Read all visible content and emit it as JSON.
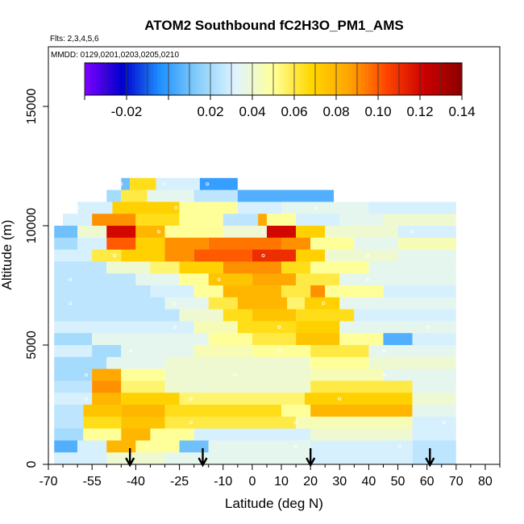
{
  "chart_data": {
    "type": "heatmap",
    "title": "ATOM2 Southbound fC2H3O_PM1_AMS",
    "subtitle_flights": "Flts: 2,3,4,5,6",
    "subtitle_dates": "MMDD: 0129,0201,0203,0205,0210",
    "xlabel": "Latitude (deg N)",
    "ylabel": "Altitude (m)",
    "xlim": [
      -70,
      85
    ],
    "ylim": [
      0,
      17500
    ],
    "x_ticks": [
      -70,
      -55,
      -40,
      -25,
      -10,
      0,
      10,
      20,
      30,
      40,
      50,
      60,
      70,
      80
    ],
    "x_minor_ticks": [
      -65,
      -60,
      -50,
      -45,
      -35,
      -30,
      -20,
      -15,
      -5,
      5,
      15,
      25,
      35,
      45,
      55,
      65,
      75,
      85
    ],
    "y_ticks": [
      0,
      5000,
      10000,
      15000
    ],
    "colorbar": {
      "ticks": [
        -0.02,
        0.02,
        0.04,
        0.06,
        0.08,
        0.1,
        0.12,
        0.14
      ],
      "tick_labels": [
        "-0.02",
        "0.02",
        "0.04",
        "0.06",
        "0.08",
        "0.10",
        "0.12",
        "0.14"
      ],
      "range": [
        -0.04,
        0.14
      ],
      "colors": [
        "#7f00ff",
        "#0000cd",
        "#1e90ff",
        "#87cefa",
        "#e0f4ff",
        "#ffff99",
        "#ffd700",
        "#ffa500",
        "#ff4500",
        "#cc0000",
        "#8b0000"
      ]
    },
    "arrow_latitudes": [
      -42,
      -17,
      20,
      61
    ],
    "rows": [
      {
        "alt": 11500,
        "segs": [
          [
            -45,
            -42,
            0.01
          ],
          [
            -42,
            -33,
            0.065
          ],
          [
            -33,
            -18,
            0.03
          ],
          [
            -18,
            -5,
            0.0
          ]
        ]
      },
      {
        "alt": 11000,
        "segs": [
          [
            -50,
            -45,
            0.02
          ],
          [
            -45,
            -36,
            0.06
          ],
          [
            -36,
            -20,
            0.035
          ],
          [
            -20,
            -5,
            0.025
          ],
          [
            -5,
            28,
            0.005
          ]
        ]
      },
      {
        "alt": 10500,
        "segs": [
          [
            -60,
            -48,
            0.03
          ],
          [
            -48,
            -25,
            0.07
          ],
          [
            -25,
            -5,
            0.05
          ],
          [
            -5,
            10,
            0.03
          ],
          [
            10,
            40,
            0.035
          ],
          [
            40,
            70,
            0.03
          ]
        ]
      },
      {
        "alt": 10000,
        "segs": [
          [
            -65,
            -55,
            0.03
          ],
          [
            -55,
            -40,
            0.09
          ],
          [
            -40,
            -25,
            0.065
          ],
          [
            -25,
            -10,
            0.05
          ],
          [
            -10,
            2,
            0.025
          ],
          [
            2,
            5,
            0.085
          ],
          [
            5,
            15,
            0.05
          ],
          [
            15,
            30,
            0.03
          ],
          [
            30,
            45,
            0.035
          ],
          [
            45,
            70,
            0.04
          ]
        ]
      },
      {
        "alt": 9500,
        "segs": [
          [
            -68,
            -60,
            0.01
          ],
          [
            -60,
            -50,
            0.04
          ],
          [
            -50,
            -40,
            0.12
          ],
          [
            -40,
            -30,
            0.08
          ],
          [
            -30,
            -10,
            0.05
          ],
          [
            -10,
            5,
            0.04
          ],
          [
            5,
            15,
            0.12
          ],
          [
            15,
            25,
            0.07
          ],
          [
            25,
            50,
            0.04
          ],
          [
            50,
            70,
            0.03
          ]
        ]
      },
      {
        "alt": 9000,
        "segs": [
          [
            -68,
            -60,
            0.02
          ],
          [
            -60,
            -50,
            0.03
          ],
          [
            -50,
            -40,
            0.1
          ],
          [
            -40,
            -30,
            0.07
          ],
          [
            -30,
            -15,
            0.09
          ],
          [
            -15,
            10,
            0.095
          ],
          [
            10,
            20,
            0.09
          ],
          [
            20,
            35,
            0.05
          ],
          [
            35,
            50,
            0.035
          ],
          [
            50,
            70,
            0.045
          ]
        ]
      },
      {
        "alt": 8500,
        "segs": [
          [
            -68,
            -55,
            0.03
          ],
          [
            -55,
            -45,
            0.06
          ],
          [
            -45,
            -30,
            0.07
          ],
          [
            -30,
            -20,
            0.09
          ],
          [
            -20,
            0,
            0.1
          ],
          [
            0,
            15,
            0.11
          ],
          [
            15,
            25,
            0.07
          ],
          [
            25,
            50,
            0.04
          ],
          [
            50,
            70,
            0.035
          ]
        ]
      },
      {
        "alt": 8000,
        "segs": [
          [
            -68,
            -50,
            0.025
          ],
          [
            -50,
            -35,
            0.04
          ],
          [
            -35,
            -25,
            0.055
          ],
          [
            -25,
            -10,
            0.07
          ],
          [
            -10,
            10,
            0.09
          ],
          [
            10,
            20,
            0.065
          ],
          [
            20,
            40,
            0.05
          ],
          [
            40,
            70,
            0.035
          ]
        ]
      },
      {
        "alt": 7500,
        "segs": [
          [
            -68,
            -40,
            0.025
          ],
          [
            -40,
            -25,
            0.035
          ],
          [
            -25,
            -15,
            0.05
          ],
          [
            -15,
            0,
            0.075
          ],
          [
            0,
            15,
            0.085
          ],
          [
            15,
            30,
            0.06
          ],
          [
            30,
            70,
            0.035
          ]
        ]
      },
      {
        "alt": 7000,
        "segs": [
          [
            -68,
            -35,
            0.025
          ],
          [
            -35,
            -20,
            0.03
          ],
          [
            -20,
            -10,
            0.05
          ],
          [
            -10,
            10,
            0.08
          ],
          [
            10,
            20,
            0.06
          ],
          [
            20,
            25,
            0.09
          ],
          [
            25,
            45,
            0.05
          ],
          [
            45,
            70,
            0.03
          ]
        ]
      },
      {
        "alt": 6500,
        "segs": [
          [
            -68,
            -30,
            0.025
          ],
          [
            -30,
            -15,
            0.035
          ],
          [
            -15,
            -5,
            0.06
          ],
          [
            -5,
            12,
            0.08
          ],
          [
            12,
            18,
            0.055
          ],
          [
            18,
            30,
            0.07
          ],
          [
            30,
            70,
            0.035
          ]
        ]
      },
      {
        "alt": 6000,
        "segs": [
          [
            -68,
            -25,
            0.025
          ],
          [
            -25,
            -10,
            0.04
          ],
          [
            -10,
            0,
            0.065
          ],
          [
            0,
            15,
            0.075
          ],
          [
            15,
            35,
            0.065
          ],
          [
            35,
            70,
            0.03
          ]
        ]
      },
      {
        "alt": 5500,
        "segs": [
          [
            -68,
            -20,
            0.03
          ],
          [
            -20,
            -5,
            0.045
          ],
          [
            -5,
            15,
            0.065
          ],
          [
            15,
            30,
            0.07
          ],
          [
            30,
            70,
            0.035
          ]
        ]
      },
      {
        "alt": 5000,
        "segs": [
          [
            -68,
            -55,
            0.02
          ],
          [
            -55,
            -15,
            0.035
          ],
          [
            -15,
            0,
            0.05
          ],
          [
            0,
            15,
            0.06
          ],
          [
            15,
            30,
            0.075
          ],
          [
            30,
            45,
            0.05
          ],
          [
            45,
            55,
            0.005
          ],
          [
            55,
            70,
            0.03
          ]
        ]
      },
      {
        "alt": 4500,
        "segs": [
          [
            -68,
            -55,
            0.03
          ],
          [
            -55,
            -45,
            0.02
          ],
          [
            -45,
            -20,
            0.035
          ],
          [
            -20,
            0,
            0.045
          ],
          [
            0,
            20,
            0.05
          ],
          [
            20,
            40,
            0.06
          ],
          [
            40,
            70,
            0.035
          ]
        ]
      },
      {
        "alt": 4000,
        "segs": [
          [
            -68,
            -50,
            0.02
          ],
          [
            -50,
            -30,
            0.035
          ],
          [
            -30,
            20,
            0.04
          ],
          [
            20,
            40,
            0.05
          ],
          [
            40,
            70,
            0.04
          ]
        ]
      },
      {
        "alt": 3500,
        "segs": [
          [
            -68,
            -55,
            0.02
          ],
          [
            -55,
            -45,
            0.085
          ],
          [
            -45,
            -30,
            0.05
          ],
          [
            -30,
            20,
            0.04
          ],
          [
            20,
            45,
            0.045
          ],
          [
            45,
            70,
            0.035
          ]
        ]
      },
      {
        "alt": 3000,
        "segs": [
          [
            -68,
            -55,
            0.025
          ],
          [
            -55,
            -45,
            0.09
          ],
          [
            -45,
            -30,
            0.055
          ],
          [
            -30,
            20,
            0.04
          ],
          [
            20,
            55,
            0.06
          ],
          [
            55,
            70,
            0.035
          ]
        ]
      },
      {
        "alt": 2500,
        "segs": [
          [
            -68,
            -55,
            0.03
          ],
          [
            -55,
            -45,
            0.08
          ],
          [
            -45,
            -25,
            0.07
          ],
          [
            -25,
            18,
            0.055
          ],
          [
            18,
            55,
            0.07
          ],
          [
            55,
            70,
            0.04
          ]
        ]
      },
      {
        "alt": 2000,
        "segs": [
          [
            -68,
            -58,
            0.025
          ],
          [
            -58,
            -45,
            0.075
          ],
          [
            -45,
            -30,
            0.08
          ],
          [
            -30,
            10,
            0.065
          ],
          [
            10,
            20,
            0.05
          ],
          [
            20,
            55,
            0.08
          ],
          [
            55,
            70,
            0.035
          ]
        ]
      },
      {
        "alt": 1500,
        "segs": [
          [
            -68,
            -58,
            0.025
          ],
          [
            -58,
            -45,
            0.065
          ],
          [
            -45,
            -30,
            0.075
          ],
          [
            -30,
            15,
            0.06
          ],
          [
            15,
            55,
            0.045
          ],
          [
            55,
            70,
            0.03
          ]
        ]
      },
      {
        "alt": 1000,
        "segs": [
          [
            -68,
            -58,
            0.02
          ],
          [
            -58,
            -45,
            0.05
          ],
          [
            -45,
            -35,
            0.08
          ],
          [
            -35,
            -20,
            0.05
          ],
          [
            -20,
            20,
            0.03
          ],
          [
            20,
            55,
            0.04
          ],
          [
            55,
            70,
            0.03
          ]
        ]
      },
      {
        "alt": 500,
        "segs": [
          [
            -68,
            -60,
            0.005
          ],
          [
            -60,
            -50,
            0.03
          ],
          [
            -50,
            -40,
            0.08
          ],
          [
            -40,
            -25,
            0.05
          ],
          [
            -25,
            -15,
            0.01
          ],
          [
            -15,
            20,
            0.035
          ],
          [
            20,
            55,
            0.03
          ],
          [
            55,
            70,
            0.025
          ]
        ]
      },
      {
        "alt": 0,
        "segs": [
          [
            -68,
            -50,
            0.03
          ],
          [
            -50,
            -30,
            0.04
          ],
          [
            -30,
            20,
            0.035
          ],
          [
            20,
            55,
            0.03
          ],
          [
            55,
            70,
            0.025
          ]
        ]
      }
    ]
  }
}
